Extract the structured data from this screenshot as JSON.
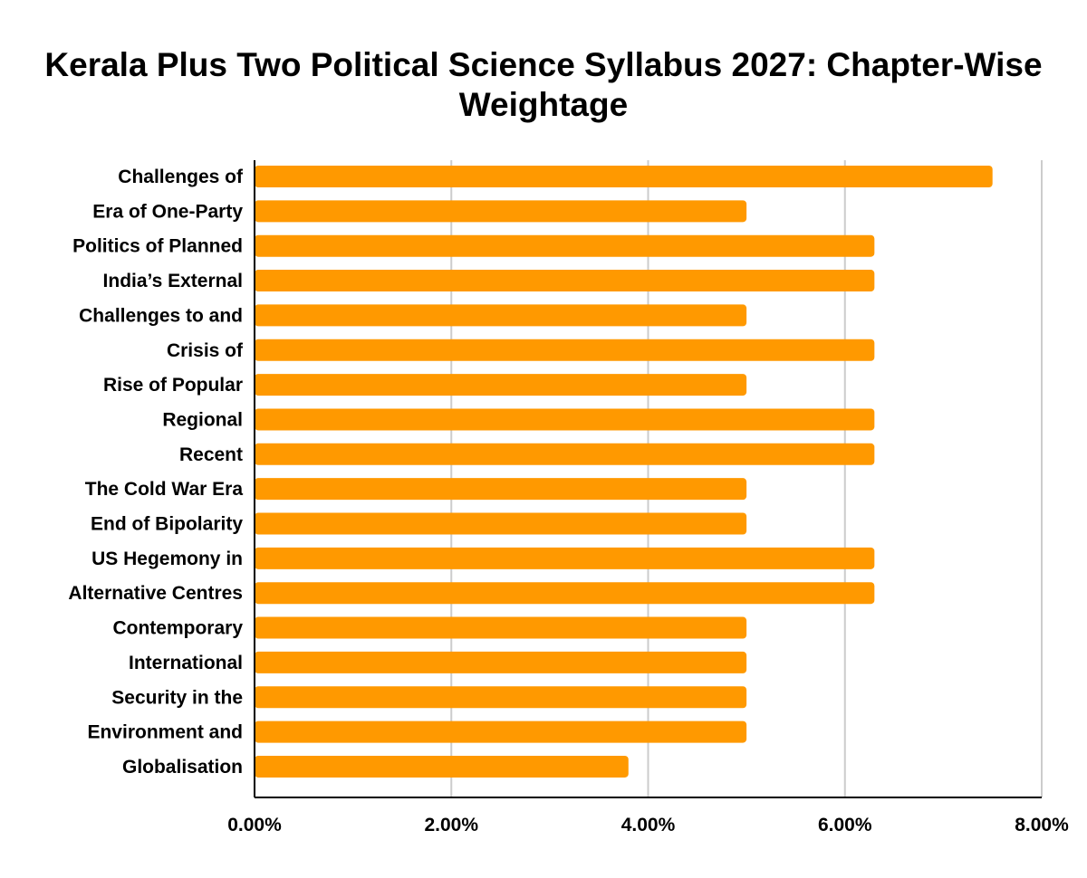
{
  "chart_data": {
    "type": "bar",
    "orientation": "horizontal",
    "title": "Kerala Plus Two Political Science Syllabus 2027: Chapter-Wise Weightage",
    "categories": [
      "Challenges of",
      "Era of One-Party",
      "Politics of Planned",
      "India’s External",
      "Challenges to and",
      "Crisis of",
      "Rise of Popular",
      "Regional",
      "Recent",
      "The Cold War Era",
      "End of Bipolarity",
      "US Hegemony in",
      "Alternative Centres",
      "Contemporary",
      "International",
      "Security in the",
      "Environment and",
      "Globalisation"
    ],
    "values": [
      7.5,
      5.0,
      6.3,
      6.3,
      5.0,
      6.3,
      5.0,
      6.3,
      6.3,
      5.0,
      5.0,
      6.3,
      6.3,
      5.0,
      5.0,
      5.0,
      5.0,
      3.8
    ],
    "xlim": [
      0,
      8
    ],
    "x_ticks": [
      0,
      2,
      4,
      6,
      8
    ],
    "x_tick_labels": [
      "0.00%",
      "2.00%",
      "4.00%",
      "6.00%",
      "8.00%"
    ],
    "xlabel": "",
    "ylabel": "",
    "grid": "vertical",
    "legend": "none",
    "bar_color": "#FF9900",
    "grid_color": "#CCCCCC",
    "axis_color": "#000000"
  }
}
